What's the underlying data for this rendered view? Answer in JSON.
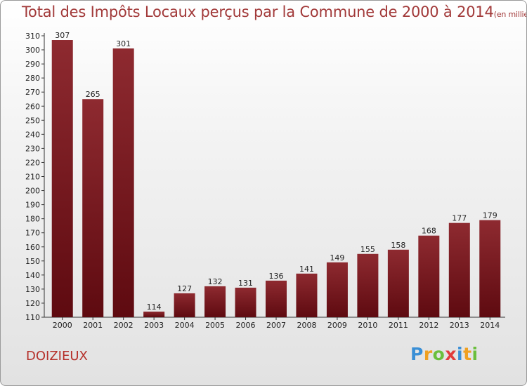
{
  "chart_data": {
    "type": "bar",
    "title": "Total des Impôts Locaux perçus par la Commune de 2000 à 2014",
    "subtitle": "(en milliers d'€)",
    "xlabel": "",
    "ylabel": "",
    "categories": [
      "2000",
      "2001",
      "2002",
      "2003",
      "2004",
      "2005",
      "2006",
      "2007",
      "2008",
      "2009",
      "2010",
      "2011",
      "2012",
      "2013",
      "2014"
    ],
    "values": [
      307,
      265,
      301,
      114,
      127,
      132,
      131,
      136,
      141,
      149,
      155,
      158,
      168,
      177,
      179
    ],
    "ylim": [
      110,
      310
    ],
    "ytick_step": 10,
    "grid": false,
    "legend": "none",
    "bar_color_top": "#8e2a30",
    "bar_color_bottom": "#5e0a10"
  },
  "commune": "DOIZIEUX",
  "logo": {
    "letters": [
      "P",
      "r",
      "o",
      "x",
      "i",
      "t",
      "i"
    ],
    "colors": [
      "#3a8fd6",
      "#f0a020",
      "#6abf3c",
      "#e23b3b",
      "#3a8fd6",
      "#f0a020",
      "#6abf3c"
    ]
  }
}
